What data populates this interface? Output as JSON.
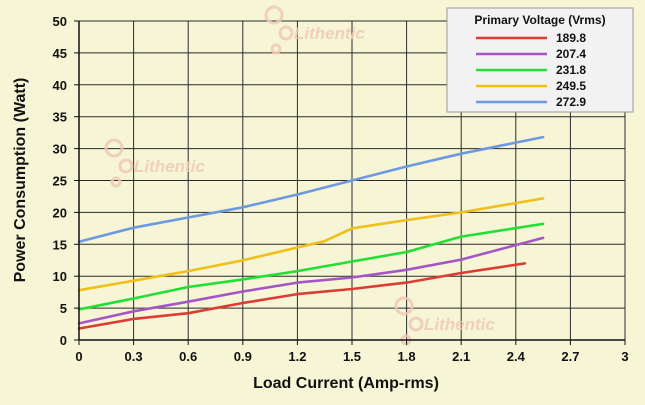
{
  "watermark": {
    "text": "Lithentic",
    "color": "#f1c9b4"
  },
  "chart_data": {
    "type": "line",
    "title": "",
    "xlabel": "Load Current (Amp-rms)",
    "ylabel": "Power Consumption (Watt)",
    "xlim": [
      0,
      3
    ],
    "ylim": [
      0,
      50
    ],
    "xticks": [
      "0",
      "0.3",
      "0.6",
      "0.9",
      "1.2",
      "1.5",
      "1.8",
      "2.1",
      "2.4",
      "2.7",
      "3"
    ],
    "yticks": [
      "0",
      "5",
      "10",
      "15",
      "20",
      "25",
      "30",
      "35",
      "40",
      "45",
      "50"
    ],
    "grid": true,
    "legend_title": "Primary Voltage (Vrms)",
    "legend_position": "top-right",
    "series": [
      {
        "name": "189.8",
        "color": "#dd3b33",
        "x": [
          0,
          0.3,
          0.6,
          0.9,
          1.2,
          1.5,
          1.8,
          2.1,
          2.45
        ],
        "y": [
          1.8,
          3.3,
          4.2,
          5.8,
          7.2,
          8.0,
          9.0,
          10.5,
          12.0
        ]
      },
      {
        "name": "207.4",
        "color": "#a455c6",
        "x": [
          0,
          0.3,
          0.6,
          0.9,
          1.2,
          1.5,
          1.8,
          2.1,
          2.55
        ],
        "y": [
          2.6,
          4.5,
          6.0,
          7.6,
          9.0,
          9.8,
          11.0,
          12.6,
          16.0
        ]
      },
      {
        "name": "231.8",
        "color": "#22e033",
        "x": [
          0,
          0.3,
          0.6,
          0.9,
          1.2,
          1.5,
          1.8,
          2.1,
          2.55
        ],
        "y": [
          4.8,
          6.5,
          8.3,
          9.5,
          10.8,
          12.3,
          13.8,
          16.2,
          18.2
        ]
      },
      {
        "name": "249.5",
        "color": "#f1bf17",
        "x": [
          0,
          0.3,
          0.6,
          0.9,
          1.2,
          1.35,
          1.5,
          1.8,
          2.1,
          2.55
        ],
        "y": [
          7.8,
          9.3,
          10.8,
          12.5,
          14.5,
          15.5,
          17.5,
          18.8,
          20.0,
          22.2
        ]
      },
      {
        "name": "272.9",
        "color": "#6d99e0",
        "x": [
          0,
          0.3,
          0.6,
          0.9,
          1.2,
          1.5,
          1.8,
          2.1,
          2.55
        ],
        "y": [
          15.4,
          17.6,
          19.2,
          20.8,
          22.8,
          25.0,
          27.2,
          29.2,
          31.8
        ]
      }
    ]
  }
}
